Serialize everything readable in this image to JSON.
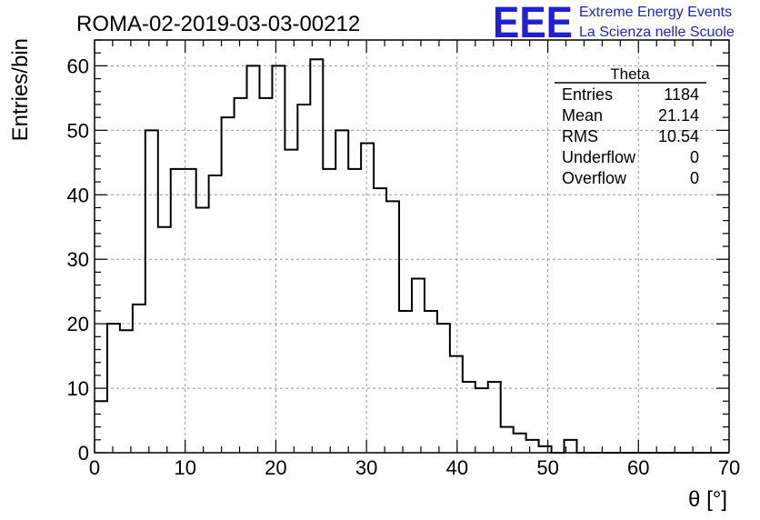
{
  "title": "ROMA-02-2019-03-03-00212",
  "logo": {
    "mark": "EEE",
    "line1": "Extreme Energy Events",
    "line2": "La Scienza nelle Scuole",
    "color": "#1f1fd8"
  },
  "stats_box": {
    "title": "Theta",
    "rows": [
      {
        "label": "Entries",
        "value": "1184"
      },
      {
        "label": "Mean",
        "value": "21.14"
      },
      {
        "label": "RMS",
        "value": "10.54"
      },
      {
        "label": "Underflow",
        "value": "0"
      },
      {
        "label": "Overflow",
        "value": "0"
      }
    ]
  },
  "chart_data": {
    "type": "bar",
    "style": "step-histogram",
    "xlabel": "θ [°]",
    "ylabel": "Entries/bin",
    "xlim": [
      0,
      70
    ],
    "ylim": [
      0,
      64
    ],
    "grid": true,
    "bin_width": 1.4,
    "x_ticks": [
      "0",
      "10",
      "20",
      "30",
      "40",
      "50",
      "60",
      "70"
    ],
    "y_ticks": [
      "0",
      "10",
      "20",
      "30",
      "40",
      "50",
      "60"
    ],
    "values": [
      8,
      20,
      19,
      23,
      50,
      35,
      44,
      44,
      38,
      43,
      52,
      55,
      60,
      55,
      60,
      47,
      54,
      61,
      44,
      50,
      44,
      48,
      41,
      39,
      22,
      27,
      22,
      20,
      15,
      11,
      10,
      11,
      4,
      3,
      2,
      1,
      0,
      2,
      0,
      0,
      0,
      0,
      0,
      0,
      0,
      0,
      0,
      0,
      0,
      0
    ]
  }
}
